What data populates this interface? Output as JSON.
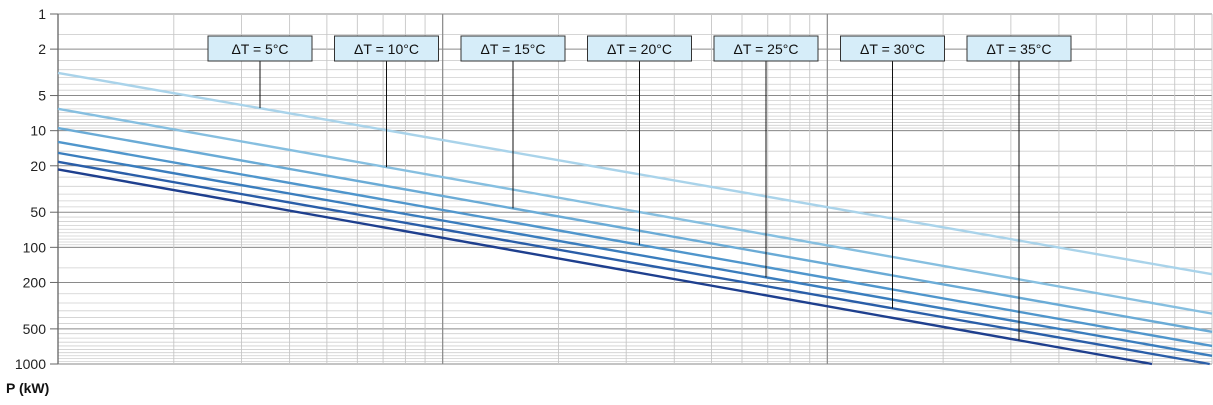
{
  "chart_data": {
    "type": "line",
    "ylabel": "P (kW)",
    "yscale": "log",
    "yinverted": true,
    "ylim": [
      1,
      1000
    ],
    "yticks": [
      1,
      2,
      5,
      10,
      20,
      50,
      100,
      200,
      500,
      1000
    ],
    "xlim": [
      0,
      1
    ],
    "grid": true,
    "series": [
      {
        "name": "ΔT = 5°C",
        "color": "#a9d3ea",
        "points": [
          [
            0.0,
            3.2
          ],
          [
            1.0,
            170
          ]
        ]
      },
      {
        "name": "ΔT = 10°C",
        "color": "#86bfe0",
        "points": [
          [
            0.0,
            6.5
          ],
          [
            1.0,
            370
          ]
        ]
      },
      {
        "name": "ΔT = 15°C",
        "color": "#6aabd6",
        "points": [
          [
            0.0,
            9.5
          ],
          [
            1.0,
            530
          ]
        ]
      },
      {
        "name": "ΔT = 20°C",
        "color": "#5096cc",
        "points": [
          [
            0.0,
            12.5
          ],
          [
            1.0,
            700
          ]
        ]
      },
      {
        "name": "ΔT = 25°C",
        "color": "#3a7dbd",
        "points": [
          [
            0.0,
            15.5
          ],
          [
            1.0,
            850
          ]
        ]
      },
      {
        "name": "ΔT = 30°C",
        "color": "#2a5ea8",
        "points": [
          [
            0.0,
            18.5
          ],
          [
            0.998,
            1000
          ]
        ]
      },
      {
        "name": "ΔT = 35°C",
        "color": "#1e3f8e",
        "points": [
          [
            0.0,
            21.5
          ],
          [
            0.948,
            1000
          ]
        ]
      }
    ]
  }
}
